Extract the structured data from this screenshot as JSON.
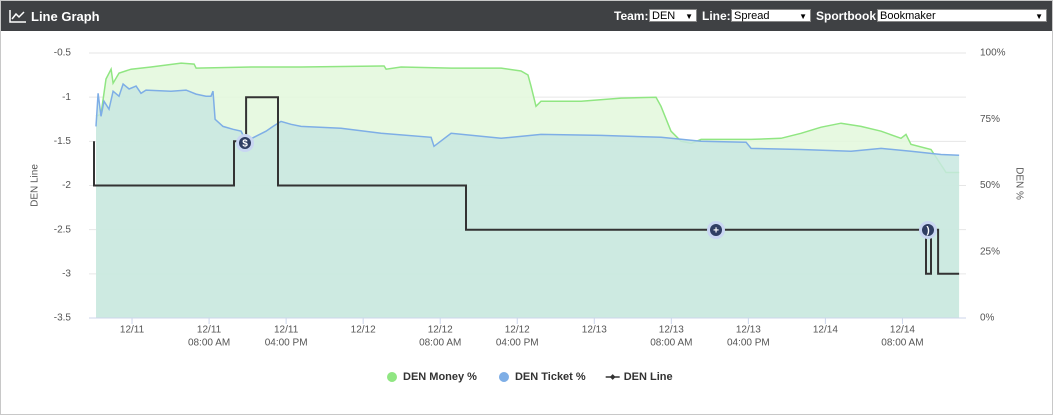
{
  "header": {
    "title": "Line Graph",
    "controls": [
      {
        "label": "Team:",
        "value": "DEN"
      },
      {
        "label": "Line:",
        "value": "Spread"
      },
      {
        "label": "Sportbook:",
        "value": "Bookmaker"
      }
    ]
  },
  "chart_data": {
    "type": "line",
    "y_label": "DEN Line",
    "y2_label": "DEN %",
    "xlim": [
      -4.47,
      86.6
    ],
    "xticks": [
      {
        "value": 0,
        "label": "12/11"
      },
      {
        "value": 8,
        "label": "12/11",
        "time": "08:00 AM"
      },
      {
        "value": 16,
        "label": "12/11",
        "time": "04:00 PM"
      },
      {
        "value": 24,
        "label": "12/12"
      },
      {
        "value": 32,
        "label": "12/12",
        "time": "08:00 AM"
      },
      {
        "value": 40,
        "label": "12/12",
        "time": "04:00 PM"
      },
      {
        "value": 48,
        "label": "12/13"
      },
      {
        "value": 56,
        "label": "12/13",
        "time": "08:00 AM"
      },
      {
        "value": 64,
        "label": "12/13",
        "time": "04:00 PM"
      },
      {
        "value": 72,
        "label": "12/14"
      },
      {
        "value": 80,
        "label": "12/14",
        "time": "08:00 AM"
      }
    ],
    "ylim": [
      -3.5,
      -0.5
    ],
    "yticks": [
      -0.5,
      -1,
      -1.5,
      -2,
      -2.5,
      -3,
      -3.5
    ],
    "y2lim": [
      0,
      100
    ],
    "y2ticks": [
      {
        "value": 0,
        "label": "0%"
      },
      {
        "value": 25,
        "label": "25%"
      },
      {
        "value": 50,
        "label": "50%"
      },
      {
        "value": 75,
        "label": "75%"
      },
      {
        "value": 100,
        "label": "100%"
      }
    ],
    "grid": true,
    "series": [
      {
        "name": "DEN Money %",
        "color": "#90e682",
        "fill": "#e3f8dc",
        "axis": "y2",
        "x": [
          -3.74,
          -3.22,
          -2.7,
          -2.18,
          -1.97,
          -1.35,
          -0.1,
          1.97,
          5.09,
          6.44,
          6.65,
          12.36,
          17.55,
          26.17,
          26.38,
          27.93,
          33.13,
          38.32,
          40.39,
          41.12,
          41.43,
          41.95,
          42.47,
          46.63,
          50.78,
          54.41,
          54.93,
          55.97,
          57.01,
          58.05,
          59.09,
          64.28,
          67.39,
          69.47,
          71.55,
          73.62,
          75.7,
          77.78,
          79.85,
          80.37,
          80.89,
          82.97,
          84.53,
          85.88
        ],
        "values": [
          76.1,
          76.9,
          90.2,
          93.9,
          88.6,
          92.4,
          93.9,
          94.7,
          96.2,
          95.8,
          94.3,
          94.7,
          94.7,
          95.1,
          93.9,
          94.7,
          94.3,
          94.3,
          93.2,
          91.7,
          87.5,
          79.9,
          81.8,
          81.8,
          83,
          83.3,
          79.9,
          70.5,
          66.7,
          65.9,
          67.4,
          67.4,
          67.8,
          69.7,
          72,
          73.5,
          72.3,
          70.5,
          67.8,
          69.3,
          65.5,
          63.6,
          54.9,
          54.9
        ]
      },
      {
        "name": "DEN Ticket %",
        "color": "#7eaee6",
        "fill": "#c8e7e0",
        "axis": "y2",
        "x": [
          -3.74,
          -3.53,
          -3.22,
          -2.91,
          -2.39,
          -1.97,
          -1.35,
          -0.93,
          -0.31,
          0.42,
          0.93,
          1.45,
          4.05,
          5.61,
          6.65,
          7.68,
          8.2,
          8.41,
          8.62,
          9.45,
          10.49,
          11.32,
          11.84,
          12.88,
          13.91,
          14.64,
          15.47,
          16.51,
          17.55,
          21.7,
          25.86,
          31.05,
          31.36,
          33.13,
          38.32,
          42.47,
          48.7,
          54.93,
          59.09,
          63.76,
          64.28,
          69.47,
          74.66,
          77.78,
          80.89,
          84.01,
          85.88
        ],
        "values": [
          72.3,
          84.8,
          76.1,
          81.8,
          78.8,
          85.6,
          83.7,
          88.3,
          86.4,
          87.5,
          84.8,
          86,
          85.6,
          86,
          84.5,
          83.7,
          83.7,
          85.6,
          75,
          72.3,
          71.2,
          70.5,
          66.7,
          68.6,
          70.5,
          72.3,
          74.2,
          73.1,
          72.3,
          71.6,
          69.7,
          68.2,
          64.8,
          69.7,
          67.8,
          69.3,
          68.9,
          68.2,
          66.7,
          66.3,
          64,
          63.6,
          62.9,
          64,
          62.9,
          61.7,
          61.4
        ]
      },
      {
        "name": "DEN Line",
        "color": "#333333",
        "axis": "y",
        "x": [
          -3.95,
          -3.95,
          10.59,
          10.59,
          11.84,
          11.84,
          15.16,
          15.16,
          34.68,
          34.68,
          82.45,
          82.45,
          82.97,
          82.97,
          83.7,
          83.7,
          85.88
        ],
        "values": [
          -1.5,
          -2,
          -2,
          -1.5,
          -1.5,
          -1,
          -1,
          -2,
          -2,
          -2.5,
          -2.5,
          -3,
          -3,
          -2.5,
          -2.5,
          -3,
          -3
        ]
      }
    ]
  }
}
